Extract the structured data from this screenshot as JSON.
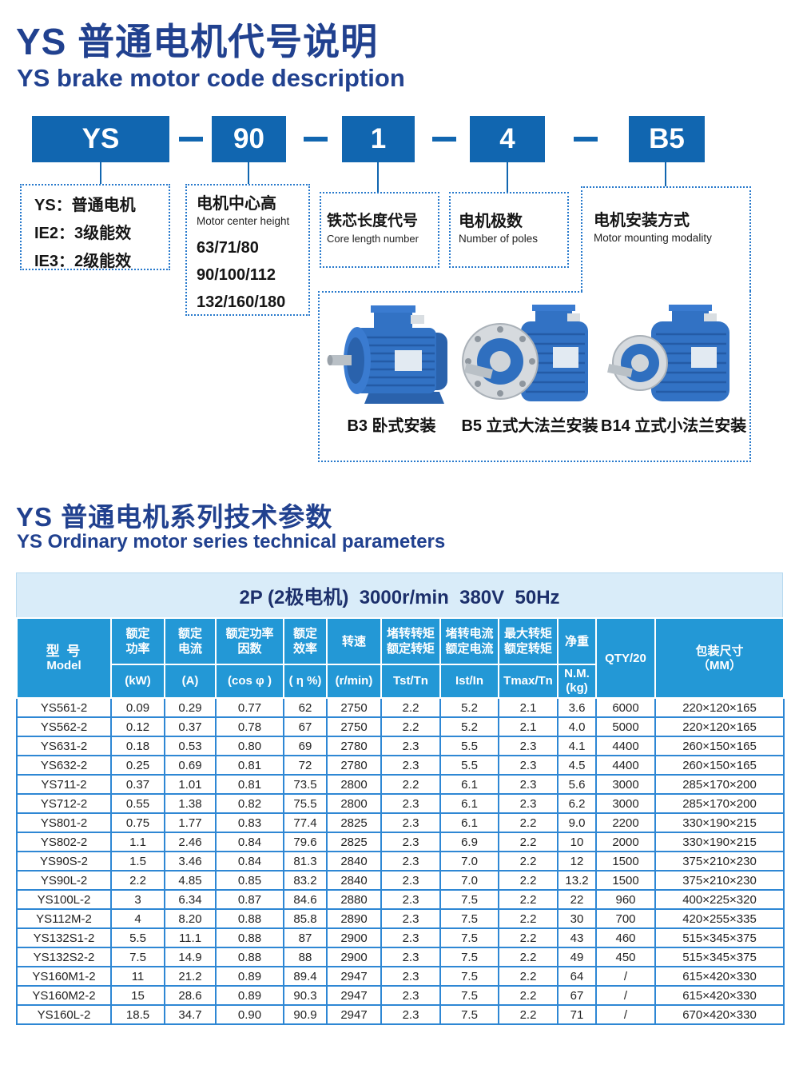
{
  "colors": {
    "title_navy": "#21418f",
    "code_box_blue": "#1166b0",
    "header_blue": "#2398d6",
    "band_bg": "#d9ecf9",
    "grid_blue": "#2e87d4",
    "dashed_border_blue": "#2779cc"
  },
  "section1": {
    "title_zh": "YS 普通电机代号说明",
    "title_en": "YS brake motor code description"
  },
  "code_row": {
    "segments": [
      "YS",
      "90",
      "1",
      "4",
      "B5"
    ]
  },
  "desc": {
    "box1": {
      "lines": [
        "YS：普通电机",
        "IE2：3级能效",
        "IE3：2级能效"
      ]
    },
    "box2": {
      "zh": "电机中心高",
      "en": "Motor center height",
      "values": [
        "63/71/80",
        "90/100/112",
        "132/160/180"
      ]
    },
    "box3": {
      "zh": "铁芯长度代号",
      "en": "Core length number"
    },
    "box4": {
      "zh": "电机极数",
      "en": "Number of poles"
    },
    "box5": {
      "zh": "电机安装方式",
      "en": "Motor mounting modality"
    }
  },
  "mountings": {
    "b3": "B3 卧式安装",
    "b5": "B5 立式大法兰安装",
    "b14": "B14 立式小法兰安装"
  },
  "section2": {
    "title_zh": "YS 普通电机系列技术参数",
    "title_en": "YS Ordinary motor series technical parameters"
  },
  "table": {
    "band": "2P (2极电机)  3000r/min  380V  50Hz",
    "headers": {
      "model_zh": "型 号",
      "model_en": "Model",
      "cols": [
        {
          "l1": "额定",
          "l2": "功率",
          "u1": "(kW)",
          "u2": ""
        },
        {
          "l1": "额定",
          "l2": "电流",
          "u1": "(A)",
          "u2": ""
        },
        {
          "l1": "额定功率",
          "l2": "因数",
          "u1": "(cos φ )",
          "u2": ""
        },
        {
          "l1": "额定",
          "l2": "效率",
          "u1": "( η %)",
          "u2": ""
        },
        {
          "l1": "转速",
          "l2": "",
          "u1": "(r/min)",
          "u2": ""
        },
        {
          "l1": "堵转转矩",
          "l2": "额定转矩",
          "u1": "Tst/Tn",
          "u2": ""
        },
        {
          "l1": "堵转电流",
          "l2": "额定电流",
          "u1": "Ist/In",
          "u2": ""
        },
        {
          "l1": "最大转矩",
          "l2": "额定转矩",
          "u1": "Tmax/Tn",
          "u2": ""
        },
        {
          "l1": "净重",
          "l2": "",
          "u1": "N.M.",
          "u2": "(kg)"
        }
      ],
      "qty": "QTY/20",
      "packing_zh": "包装尺寸",
      "packing_unit": "（MM）"
    },
    "rows": [
      [
        "YS561-2",
        "0.09",
        "0.29",
        "0.77",
        "62",
        "2750",
        "2.2",
        "5.2",
        "2.1",
        "3.6",
        "6000",
        "220×120×165"
      ],
      [
        "YS562-2",
        "0.12",
        "0.37",
        "0.78",
        "67",
        "2750",
        "2.2",
        "5.2",
        "2.1",
        "4.0",
        "5000",
        "220×120×165"
      ],
      [
        "YS631-2",
        "0.18",
        "0.53",
        "0.80",
        "69",
        "2780",
        "2.3",
        "5.5",
        "2.3",
        "4.1",
        "4400",
        "260×150×165"
      ],
      [
        "YS632-2",
        "0.25",
        "0.69",
        "0.81",
        "72",
        "2780",
        "2.3",
        "5.5",
        "2.3",
        "4.5",
        "4400",
        "260×150×165"
      ],
      [
        "YS711-2",
        "0.37",
        "1.01",
        "0.81",
        "73.5",
        "2800",
        "2.2",
        "6.1",
        "2.3",
        "5.6",
        "3000",
        "285×170×200"
      ],
      [
        "YS712-2",
        "0.55",
        "1.38",
        "0.82",
        "75.5",
        "2800",
        "2.3",
        "6.1",
        "2.3",
        "6.2",
        "3000",
        "285×170×200"
      ],
      [
        "YS801-2",
        "0.75",
        "1.77",
        "0.83",
        "77.4",
        "2825",
        "2.3",
        "6.1",
        "2.2",
        "9.0",
        "2200",
        "330×190×215"
      ],
      [
        "YS802-2",
        "1.1",
        "2.46",
        "0.84",
        "79.6",
        "2825",
        "2.3",
        "6.9",
        "2.2",
        "10",
        "2000",
        "330×190×215"
      ],
      [
        "YS90S-2",
        "1.5",
        "3.46",
        "0.84",
        "81.3",
        "2840",
        "2.3",
        "7.0",
        "2.2",
        "12",
        "1500",
        "375×210×230"
      ],
      [
        "YS90L-2",
        "2.2",
        "4.85",
        "0.85",
        "83.2",
        "2840",
        "2.3",
        "7.0",
        "2.2",
        "13.2",
        "1500",
        "375×210×230"
      ],
      [
        "YS100L-2",
        "3",
        "6.34",
        "0.87",
        "84.6",
        "2880",
        "2.3",
        "7.5",
        "2.2",
        "22",
        "960",
        "400×225×320"
      ],
      [
        "YS112M-2",
        "4",
        "8.20",
        "0.88",
        "85.8",
        "2890",
        "2.3",
        "7.5",
        "2.2",
        "30",
        "700",
        "420×255×335"
      ],
      [
        "YS132S1-2",
        "5.5",
        "11.1",
        "0.88",
        "87",
        "2900",
        "2.3",
        "7.5",
        "2.2",
        "43",
        "460",
        "515×345×375"
      ],
      [
        "YS132S2-2",
        "7.5",
        "14.9",
        "0.88",
        "88",
        "2900",
        "2.3",
        "7.5",
        "2.2",
        "49",
        "450",
        "515×345×375"
      ],
      [
        "YS160M1-2",
        "11",
        "21.2",
        "0.89",
        "89.4",
        "2947",
        "2.3",
        "7.5",
        "2.2",
        "64",
        "/",
        "615×420×330"
      ],
      [
        "YS160M2-2",
        "15",
        "28.6",
        "0.89",
        "90.3",
        "2947",
        "2.3",
        "7.5",
        "2.2",
        "67",
        "/",
        "615×420×330"
      ],
      [
        "YS160L-2",
        "18.5",
        "34.7",
        "0.90",
        "90.9",
        "2947",
        "2.3",
        "7.5",
        "2.2",
        "71",
        "/",
        "670×420×330"
      ]
    ]
  }
}
